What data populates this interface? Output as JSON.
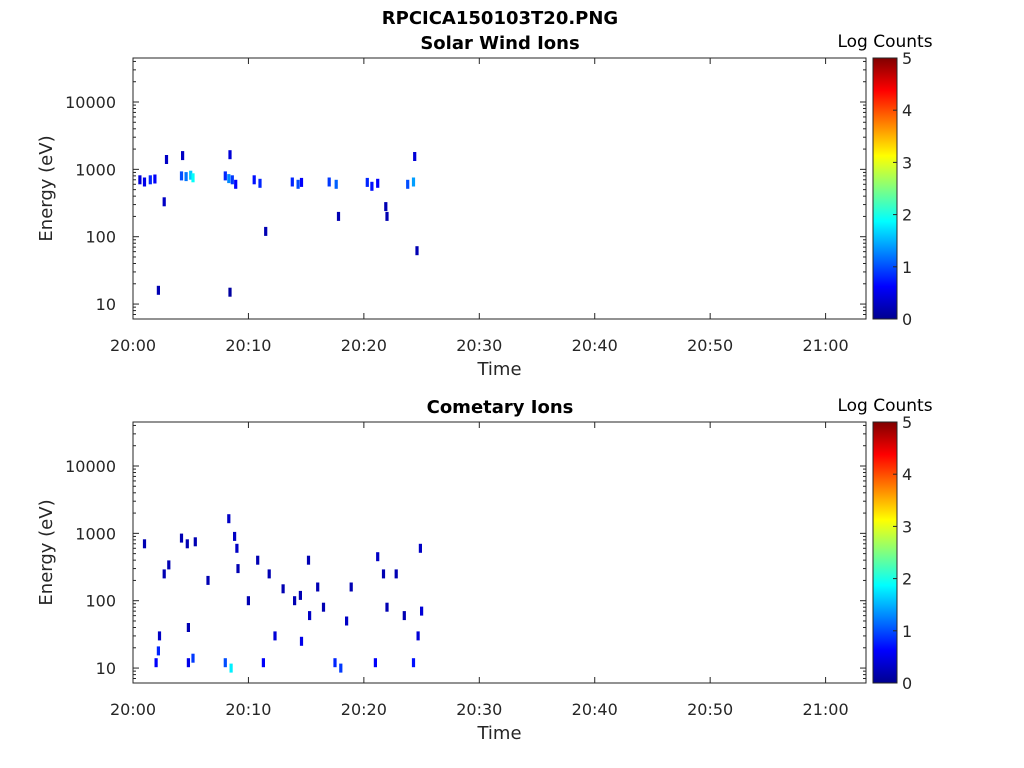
{
  "figure": {
    "title": "RPCICA150103T20.PNG"
  },
  "colorbar": {
    "ticks": [
      0,
      1,
      2,
      3,
      4,
      5
    ],
    "colors": [
      "#00008f",
      "#0000ff",
      "#0080ff",
      "#00ffff",
      "#80ff80",
      "#ffff00",
      "#ff8000",
      "#ff0000",
      "#800000"
    ]
  },
  "chart_data": [
    {
      "type": "heatmap",
      "title": "Solar Wind Ions",
      "xlabel": "Time",
      "ylabel": "Energy (eV)",
      "x_ticks": [
        "20:00",
        "20:10",
        "20:20",
        "20:30",
        "20:40",
        "20:50",
        "21:00"
      ],
      "x_range_minutes": [
        0,
        63.5
      ],
      "y_scale": "log",
      "y_range": [
        6,
        45000
      ],
      "y_ticks": [
        10,
        100,
        1000,
        10000
      ],
      "y_tick_labels": [
        "10",
        "100",
        "1000",
        "10000"
      ],
      "colorbar_label": "Log Counts",
      "colorbar_range": [
        0,
        5
      ],
      "cells": [
        [
          0.6,
          700,
          0.4
        ],
        [
          1.0,
          650,
          0.5
        ],
        [
          1.5,
          700,
          0.8
        ],
        [
          1.9,
          720,
          0.6
        ],
        [
          2.2,
          16,
          0.2
        ],
        [
          2.7,
          330,
          0.3
        ],
        [
          2.9,
          1400,
          0.3
        ],
        [
          4.2,
          800,
          1.0
        ],
        [
          4.6,
          780,
          1.2
        ],
        [
          4.3,
          1600,
          0.3
        ],
        [
          5.0,
          820,
          1.6
        ],
        [
          5.2,
          750,
          1.9
        ],
        [
          8.0,
          800,
          0.8
        ],
        [
          8.3,
          730,
          1.3
        ],
        [
          8.4,
          1650,
          0.4
        ],
        [
          8.4,
          15,
          0.1
        ],
        [
          8.6,
          700,
          0.9
        ],
        [
          8.9,
          600,
          0.6
        ],
        [
          10.5,
          700,
          0.7
        ],
        [
          11.0,
          620,
          0.8
        ],
        [
          11.5,
          120,
          0.2
        ],
        [
          13.8,
          650,
          0.8
        ],
        [
          14.3,
          600,
          1.0
        ],
        [
          14.6,
          640,
          0.6
        ],
        [
          17.0,
          650,
          0.9
        ],
        [
          17.6,
          600,
          1.1
        ],
        [
          17.8,
          200,
          0.2
        ],
        [
          20.3,
          640,
          0.8
        ],
        [
          20.7,
          560,
          0.7
        ],
        [
          21.2,
          620,
          0.6
        ],
        [
          21.9,
          280,
          0.2
        ],
        [
          22.0,
          200,
          0.2
        ],
        [
          23.8,
          600,
          1.0
        ],
        [
          24.3,
          650,
          1.4
        ],
        [
          24.4,
          1550,
          0.4
        ],
        [
          24.6,
          62,
          0.2
        ]
      ]
    },
    {
      "type": "heatmap",
      "title": "Cometary Ions",
      "xlabel": "Time",
      "ylabel": "Energy (eV)",
      "x_ticks": [
        "20:00",
        "20:10",
        "20:20",
        "20:30",
        "20:40",
        "20:50",
        "21:00"
      ],
      "x_range_minutes": [
        0,
        63.5
      ],
      "y_scale": "log",
      "y_range": [
        6,
        45000
      ],
      "y_ticks": [
        10,
        100,
        1000,
        10000
      ],
      "y_tick_labels": [
        "10",
        "100",
        "1000",
        "10000"
      ],
      "colorbar_label": "Log Counts",
      "colorbar_range": [
        0,
        5
      ],
      "cells": [
        [
          1.0,
          700,
          0.2
        ],
        [
          2.0,
          12,
          0.6
        ],
        [
          2.2,
          18,
          0.8
        ],
        [
          2.3,
          30,
          0.3
        ],
        [
          2.7,
          250,
          0.2
        ],
        [
          3.1,
          340,
          0.2
        ],
        [
          4.2,
          850,
          0.2
        ],
        [
          4.7,
          700,
          0.2
        ],
        [
          4.8,
          40,
          0.2
        ],
        [
          4.8,
          12,
          0.5
        ],
        [
          5.2,
          14,
          0.9
        ],
        [
          5.4,
          750,
          0.2
        ],
        [
          6.5,
          200,
          0.2
        ],
        [
          8.0,
          12,
          1.0
        ],
        [
          8.3,
          1650,
          0.3
        ],
        [
          8.5,
          10,
          1.8
        ],
        [
          8.8,
          900,
          0.3
        ],
        [
          9.0,
          600,
          0.3
        ],
        [
          9.1,
          300,
          0.2
        ],
        [
          10.0,
          100,
          0.2
        ],
        [
          10.8,
          400,
          0.2
        ],
        [
          11.3,
          12,
          0.6
        ],
        [
          11.8,
          250,
          0.2
        ],
        [
          12.3,
          30,
          0.4
        ],
        [
          13.0,
          150,
          0.2
        ],
        [
          14.0,
          100,
          0.2
        ],
        [
          14.5,
          120,
          0.2
        ],
        [
          14.6,
          25,
          0.5
        ],
        [
          15.2,
          400,
          0.2
        ],
        [
          15.3,
          60,
          0.3
        ],
        [
          16.0,
          160,
          0.2
        ],
        [
          16.5,
          80,
          0.2
        ],
        [
          17.5,
          12,
          0.8
        ],
        [
          18.0,
          10,
          0.9
        ],
        [
          18.5,
          50,
          0.3
        ],
        [
          18.9,
          160,
          0.2
        ],
        [
          21.0,
          12,
          0.6
        ],
        [
          21.2,
          450,
          0.3
        ],
        [
          21.7,
          250,
          0.2
        ],
        [
          22.0,
          80,
          0.2
        ],
        [
          22.8,
          250,
          0.2
        ],
        [
          23.5,
          60,
          0.2
        ],
        [
          24.3,
          12,
          0.7
        ],
        [
          24.7,
          30,
          0.4
        ],
        [
          24.9,
          600,
          0.3
        ],
        [
          25.0,
          70,
          0.4
        ]
      ]
    }
  ]
}
